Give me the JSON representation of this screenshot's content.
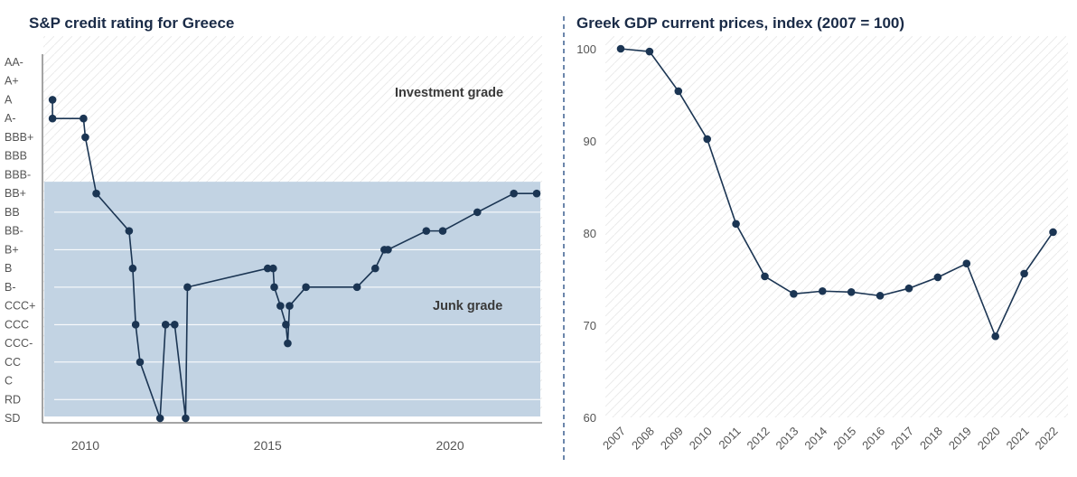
{
  "colors": {
    "series": "#1b3553",
    "junk_fill": "#c2d3e3",
    "divider": "#3b5f8f"
  },
  "chart_data": [
    {
      "type": "line",
      "title": "S&P credit rating for Greece",
      "y_categories": [
        "AA-",
        "A+",
        "A",
        "A-",
        "BBB+",
        "BBB",
        "BBB-",
        "BB+",
        "BB",
        "BB-",
        "B+",
        "B",
        "B-",
        "CCC+",
        "CCC",
        "CCC-",
        "CC",
        "C",
        "RD",
        "SD"
      ],
      "x_ticks": [
        2010,
        2015,
        2020
      ],
      "x_range": [
        2008.8,
        2022.6
      ],
      "annotations": {
        "investment": "Investment grade",
        "junk": "Junk grade"
      },
      "junk_range": [
        "BB+",
        "SD"
      ],
      "points": [
        {
          "x": 2009.1,
          "y": "A"
        },
        {
          "x": 2009.1,
          "y": "A-"
        },
        {
          "x": 2009.95,
          "y": "A-"
        },
        {
          "x": 2010.0,
          "y": "BBB+"
        },
        {
          "x": 2010.3,
          "y": "BB+"
        },
        {
          "x": 2011.2,
          "y": "BB-"
        },
        {
          "x": 2011.3,
          "y": "B"
        },
        {
          "x": 2011.38,
          "y": "CCC"
        },
        {
          "x": 2011.5,
          "y": "CC"
        },
        {
          "x": 2012.05,
          "y": "SD"
        },
        {
          "x": 2012.2,
          "y": "CCC"
        },
        {
          "x": 2012.45,
          "y": "CCC"
        },
        {
          "x": 2012.75,
          "y": "SD"
        },
        {
          "x": 2012.8,
          "y": "B-"
        },
        {
          "x": 2015.0,
          "y": "B"
        },
        {
          "x": 2015.15,
          "y": "B"
        },
        {
          "x": 2015.18,
          "y": "B-"
        },
        {
          "x": 2015.35,
          "y": "CCC+"
        },
        {
          "x": 2015.5,
          "y": "CCC"
        },
        {
          "x": 2015.55,
          "y": "CCC-"
        },
        {
          "x": 2015.6,
          "y": "CCC+"
        },
        {
          "x": 2016.05,
          "y": "B-"
        },
        {
          "x": 2017.45,
          "y": "B-"
        },
        {
          "x": 2017.95,
          "y": "B"
        },
        {
          "x": 2018.2,
          "y": "B+"
        },
        {
          "x": 2018.3,
          "y": "B+"
        },
        {
          "x": 2019.35,
          "y": "BB-"
        },
        {
          "x": 2019.8,
          "y": "BB-"
        },
        {
          "x": 2020.75,
          "y": "BB"
        },
        {
          "x": 2021.75,
          "y": "BB+"
        },
        {
          "x": 2022.8,
          "y": "BB+"
        }
      ]
    },
    {
      "type": "line",
      "title": "Greek GDP current prices, index (2007 = 100)",
      "x": [
        "2007",
        "2008",
        "2009",
        "2010",
        "2011",
        "2012",
        "2013",
        "2014",
        "2015",
        "2016",
        "2017",
        "2018",
        "2019",
        "2020",
        "2021",
        "2022"
      ],
      "values": [
        100.0,
        99.7,
        95.4,
        90.2,
        81.0,
        75.3,
        73.4,
        73.7,
        73.6,
        73.2,
        74.0,
        75.2,
        76.7,
        68.8,
        75.6,
        80.1
      ],
      "y_ticks": [
        60,
        70,
        80,
        90,
        100
      ],
      "ylim": [
        60,
        100
      ]
    }
  ]
}
